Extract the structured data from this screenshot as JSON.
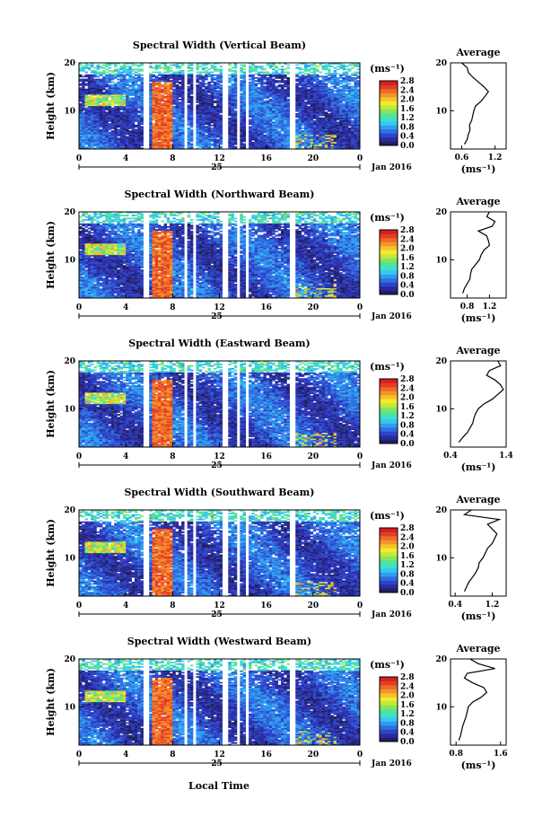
{
  "figure": {
    "xlabel": "Local Time",
    "date_label": "Jan 2016",
    "day_label": "25",
    "ylabel": "Height (km)",
    "colorbar_unit": "(ms⁻¹)",
    "avg_title": "Average",
    "avg_xlabel": "(ms⁻¹)"
  },
  "colorbar": {
    "ticks": [
      "2.8",
      "2.4",
      "2.0",
      "1.6",
      "1.2",
      "0.8",
      "0.4",
      "0.0"
    ],
    "colors": [
      "#202060",
      "#2a2aa0",
      "#2e44c8",
      "#2f6fe0",
      "#2f9df0",
      "#35c8f0",
      "#3ee0c8",
      "#52e29a",
      "#86e35a",
      "#c2e83a",
      "#f2ea2e",
      "#f7c22a",
      "#f3942a",
      "#ee6a2a",
      "#e43c26",
      "#d42020"
    ]
  },
  "chart_data": [
    {
      "type": "heatmap",
      "title": "Spectral Width (Vertical Beam)",
      "x_ticks": [
        "0",
        "4",
        "8",
        "12",
        "16",
        "20",
        "0"
      ],
      "y_ticks": [
        "20",
        "10"
      ],
      "xlim": [
        0,
        24
      ],
      "ylim": [
        2,
        20
      ],
      "avg_profile": {
        "x_ticks": [
          "0.6",
          "1.2"
        ],
        "xlim": [
          0.4,
          1.4
        ],
        "y_ticks": [
          "20",
          "10"
        ],
        "height": [
          3,
          4,
          5,
          6,
          7,
          8,
          9,
          10,
          11,
          12,
          13,
          14,
          15,
          16,
          17,
          18,
          19,
          20
        ],
        "value": [
          0.65,
          0.7,
          0.72,
          0.75,
          0.74,
          0.78,
          0.8,
          0.82,
          0.85,
          0.95,
          1.02,
          1.08,
          1.0,
          0.9,
          0.8,
          0.72,
          0.7,
          0.6
        ]
      }
    },
    {
      "type": "heatmap",
      "title": "Spectral Width (Northward Beam)",
      "x_ticks": [
        "0",
        "4",
        "8",
        "12",
        "16",
        "20",
        "0"
      ],
      "y_ticks": [
        "20",
        "10"
      ],
      "xlim": [
        0,
        24
      ],
      "ylim": [
        2,
        20
      ],
      "avg_profile": {
        "x_ticks": [
          "0.8",
          "1.2"
        ],
        "xlim": [
          0.5,
          1.5
        ],
        "y_ticks": [
          "20",
          "10"
        ],
        "height": [
          3,
          4,
          5,
          6,
          7,
          8,
          9,
          10,
          11,
          12,
          13,
          14,
          15,
          16,
          17,
          18,
          19,
          20
        ],
        "value": [
          0.72,
          0.75,
          0.8,
          0.85,
          0.86,
          0.88,
          0.95,
          1.02,
          1.05,
          1.1,
          1.2,
          1.18,
          1.15,
          1.0,
          1.25,
          1.3,
          1.15,
          1.2
        ]
      }
    },
    {
      "type": "heatmap",
      "title": "Spectral Width (Eastward Beam)",
      "x_ticks": [
        "0",
        "4",
        "8",
        "12",
        "16",
        "20",
        "0"
      ],
      "y_ticks": [
        "20",
        "10"
      ],
      "xlim": [
        0,
        24
      ],
      "ylim": [
        2,
        20
      ],
      "avg_profile": {
        "x_ticks": [
          "0.4",
          "1.4"
        ],
        "xlim": [
          0.4,
          1.4
        ],
        "y_ticks": [
          "20",
          "10"
        ],
        "height": [
          3,
          4,
          5,
          6,
          7,
          8,
          9,
          10,
          11,
          12,
          13,
          14,
          15,
          16,
          17,
          18,
          19,
          20
        ],
        "value": [
          0.55,
          0.62,
          0.7,
          0.75,
          0.8,
          0.82,
          0.85,
          0.9,
          1.0,
          1.15,
          1.25,
          1.35,
          1.3,
          1.2,
          1.05,
          1.1,
          1.3,
          1.25
        ]
      }
    },
    {
      "type": "heatmap",
      "title": "Spectral Width (Southward Beam)",
      "x_ticks": [
        "0",
        "4",
        "8",
        "12",
        "16",
        "20",
        "0"
      ],
      "y_ticks": [
        "20",
        "10"
      ],
      "xlim": [
        0,
        24
      ],
      "ylim": [
        2,
        20
      ],
      "avg_profile": {
        "x_ticks": [
          "0.4",
          "1.2"
        ],
        "xlim": [
          0.3,
          1.5
        ],
        "y_ticks": [
          "20",
          "10"
        ],
        "height": [
          3,
          4,
          5,
          6,
          7,
          8,
          9,
          10,
          11,
          12,
          13,
          14,
          15,
          16,
          17,
          18,
          19,
          20
        ],
        "value": [
          0.6,
          0.65,
          0.7,
          0.78,
          0.85,
          0.9,
          0.92,
          1.0,
          1.05,
          1.1,
          1.2,
          1.25,
          1.3,
          1.2,
          1.1,
          1.35,
          0.6,
          0.75
        ]
      }
    },
    {
      "type": "heatmap",
      "title": "Spectral Width (Westward Beam)",
      "x_ticks": [
        "0",
        "4",
        "8",
        "12",
        "16",
        "20",
        "0"
      ],
      "y_ticks": [
        "20",
        "10"
      ],
      "xlim": [
        0,
        24
      ],
      "ylim": [
        2,
        20
      ],
      "avg_profile": {
        "x_ticks": [
          "0.8",
          "1.6"
        ],
        "xlim": [
          0.7,
          1.7
        ],
        "y_ticks": [
          "20",
          "10"
        ],
        "height": [
          3,
          4,
          5,
          6,
          7,
          8,
          9,
          10,
          11,
          12,
          13,
          14,
          15,
          16,
          17,
          18,
          19,
          20
        ],
        "value": [
          0.85,
          0.88,
          0.9,
          0.92,
          0.95,
          0.98,
          1.0,
          1.02,
          1.1,
          1.25,
          1.35,
          1.3,
          1.1,
          0.95,
          1.0,
          1.5,
          1.2,
          1.05
        ]
      }
    }
  ],
  "data_gaps_hours": [
    [
      5.5,
      6.1
    ],
    [
      8.9,
      9.3
    ],
    [
      9.7,
      10.1
    ],
    [
      12.3,
      12.8
    ],
    [
      13.4,
      13.8
    ],
    [
      14.2,
      14.6
    ],
    [
      17.9,
      18.5
    ]
  ],
  "cell_size": {
    "dx_hours": 0.25,
    "dy_km": 0.3
  }
}
